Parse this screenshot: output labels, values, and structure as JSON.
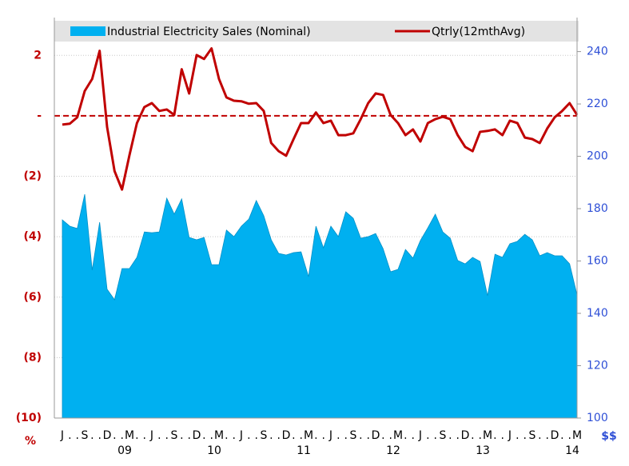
{
  "chart_data": {
    "type": "area_line",
    "categories": [
      "J",
      ".",
      ".",
      "S",
      ".",
      ".",
      "D",
      ".",
      ".",
      "M",
      ".",
      ".",
      "J",
      ".",
      ".",
      "S",
      ".",
      ".",
      "D",
      ".",
      ".",
      "M",
      ".",
      ".",
      "J",
      ".",
      ".",
      "S",
      ".",
      ".",
      "D",
      ".",
      ".",
      "M",
      ".",
      ".",
      "J",
      ".",
      ".",
      "S",
      ".",
      ".",
      "D",
      ".",
      ".",
      "M",
      ".",
      ".",
      "J",
      ".",
      ".",
      "S",
      ".",
      ".",
      "D",
      ".",
      ".",
      "M",
      ".",
      ".",
      "J",
      ".",
      ".",
      "S",
      ".",
      ".",
      "D",
      ".",
      ".",
      "M"
    ],
    "years": [
      null,
      null,
      null,
      null,
      null,
      null,
      null,
      null,
      null,
      "09",
      null,
      null,
      null,
      null,
      null,
      null,
      null,
      null,
      null,
      null,
      null,
      "10",
      null,
      null,
      null,
      null,
      null,
      null,
      null,
      null,
      null,
      null,
      null,
      "11",
      null,
      null,
      null,
      null,
      null,
      null,
      null,
      null,
      null,
      null,
      null,
      "12",
      null,
      null,
      null,
      null,
      null,
      null,
      null,
      null,
      null,
      null,
      null,
      "13",
      null,
      null,
      null,
      null,
      null,
      null,
      null,
      null,
      null,
      null,
      null,
      "14"
    ],
    "series": [
      {
        "name": "Industrial Electricity Sales (Nominal)",
        "color": "#00b0f0",
        "kind": "area",
        "axis": "y2",
        "values": [
          175.7,
          173.3,
          172.4,
          185.5,
          156.5,
          174.8,
          149.2,
          145.2,
          157.1,
          157.1,
          161.4,
          171.1,
          170.8,
          171.1,
          184.0,
          177.9,
          183.7,
          169.0,
          168.1,
          169.0,
          158.6,
          158.6,
          171.8,
          169.3,
          173.3,
          176.0,
          183.1,
          177.3,
          168.1,
          162.9,
          162.3,
          163.2,
          163.5,
          154.0,
          173.3,
          165.0,
          173.3,
          169.3,
          178.8,
          176.3,
          168.7,
          169.3,
          170.5,
          164.7,
          155.9,
          156.8,
          164.4,
          161.1,
          167.8,
          172.7,
          177.9,
          171.1,
          168.7,
          160.2,
          158.9,
          161.4,
          159.8,
          146.7,
          162.6,
          161.4,
          166.6,
          167.5,
          170.2,
          168.1,
          162.0,
          163.2,
          162.0,
          162.0,
          158.9,
          147.0
        ]
      },
      {
        "name": "Qtrly(12mthAvg)",
        "color": "#c00000",
        "kind": "line",
        "values": [
          -0.29,
          -0.26,
          -0.05,
          0.82,
          1.22,
          2.15,
          -0.37,
          -1.83,
          -2.44,
          -1.3,
          -0.24,
          0.29,
          0.42,
          0.16,
          0.21,
          0.03,
          1.54,
          0.74,
          2.01,
          1.88,
          2.23,
          1.22,
          0.61,
          0.5,
          0.48,
          0.4,
          0.42,
          0.16,
          -0.9,
          -1.17,
          -1.32,
          -0.77,
          -0.24,
          -0.24,
          0.11,
          -0.24,
          -0.16,
          -0.64,
          -0.64,
          -0.58,
          -0.11,
          0.42,
          0.74,
          0.69,
          0.03,
          -0.24,
          -0.64,
          -0.45,
          -0.85,
          -0.24,
          -0.11,
          -0.03,
          -0.11,
          -0.64,
          -1.03,
          -1.17,
          -0.53,
          -0.5,
          -0.45,
          -0.64,
          -0.16,
          -0.24,
          -0.72,
          -0.77,
          -0.9,
          -0.42,
          -0.05,
          0.16,
          0.42,
          0.03
        ]
      }
    ],
    "reference_line": {
      "value": 0,
      "color": "#c00000",
      "dashed": true
    },
    "ylim": [
      -10,
      3.25
    ],
    "yticks": [
      {
        "value": 2,
        "label": "2"
      },
      {
        "value": 0,
        "label": "-"
      },
      {
        "value": -2,
        "label": "(2)"
      },
      {
        "value": -4,
        "label": "(4)"
      },
      {
        "value": -6,
        "label": "(6)"
      },
      {
        "value": -8,
        "label": "(8)"
      },
      {
        "value": -10,
        "label": "(10)"
      }
    ],
    "y_unit": "%",
    "y_color": "#c00000",
    "y2lim": [
      100,
      253
    ],
    "y2ticks": [
      100,
      120,
      140,
      160,
      180,
      200,
      220,
      240
    ],
    "y2_unit": "$$",
    "y2_color": "#2e4fd6",
    "grid": true
  }
}
